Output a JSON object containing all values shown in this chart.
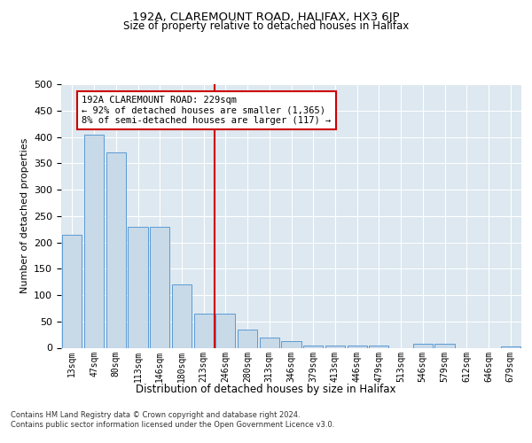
{
  "title": "192A, CLAREMOUNT ROAD, HALIFAX, HX3 6JP",
  "subtitle": "Size of property relative to detached houses in Halifax",
  "xlabel": "Distribution of detached houses by size in Halifax",
  "ylabel": "Number of detached properties",
  "categories": [
    "13sqm",
    "47sqm",
    "80sqm",
    "113sqm",
    "146sqm",
    "180sqm",
    "213sqm",
    "246sqm",
    "280sqm",
    "313sqm",
    "346sqm",
    "379sqm",
    "413sqm",
    "446sqm",
    "479sqm",
    "513sqm",
    "546sqm",
    "579sqm",
    "612sqm",
    "646sqm",
    "679sqm"
  ],
  "values": [
    215,
    405,
    370,
    230,
    230,
    120,
    65,
    65,
    35,
    20,
    13,
    5,
    5,
    4,
    4,
    0,
    8,
    8,
    0,
    0,
    2
  ],
  "bar_color": "#c8d9e8",
  "bar_edge_color": "#5b9bd5",
  "vline_x": 6.5,
  "vline_color": "#cc0000",
  "annotation_title": "192A CLAREMOUNT ROAD: 229sqm",
  "annotation_line1": "← 92% of detached houses are smaller (1,365)",
  "annotation_line2": "8% of semi-detached houses are larger (117) →",
  "annotation_box_color": "#ffffff",
  "annotation_box_edge_color": "#cc0000",
  "footnote1": "Contains HM Land Registry data © Crown copyright and database right 2024.",
  "footnote2": "Contains public sector information licensed under the Open Government Licence v3.0.",
  "ylim": [
    0,
    500
  ],
  "plot_bg_color": "#dde8f0"
}
